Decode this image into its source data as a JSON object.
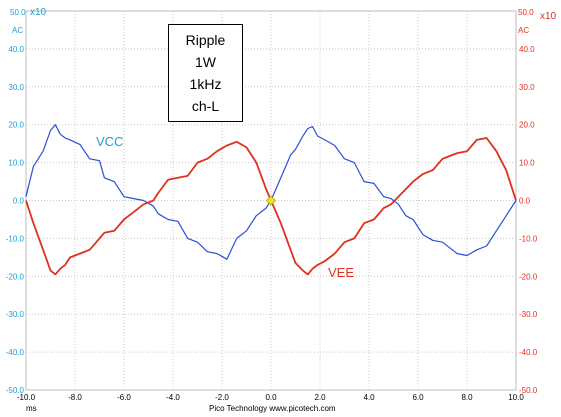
{
  "chart_data": {
    "type": "line",
    "annotation_lines": [
      "Ripple",
      "1W",
      "1kHz",
      "ch-L"
    ],
    "x_unit": "ms",
    "footer": "Pico Technology  www.picotech.com",
    "xlim": [
      -10.0,
      10.0
    ],
    "x_ticks": [
      -10.0,
      -8.0,
      -6.0,
      -4.0,
      -2.0,
      0.0,
      2.0,
      4.0,
      6.0,
      8.0,
      10.0
    ],
    "y_axes": {
      "left": {
        "top_labels": [
          "50.0",
          "x10",
          "AC"
        ],
        "color": "#1a9fd4",
        "ylim": [
          -50.0,
          50.0
        ]
      },
      "right": {
        "top_labels": [
          "50.0",
          "x10",
          "AC"
        ],
        "color": "#e0301e",
        "ylim": [
          -50.0,
          50.0
        ]
      }
    },
    "y_ticks": [
      50.0,
      40.0,
      30.0,
      20.0,
      10.0,
      0.0,
      -10.0,
      -20.0,
      -30.0,
      -40.0,
      -50.0
    ],
    "y_tick_labels": [
      "50.0",
      "40.0",
      "30.0",
      "20.0",
      "10.0",
      "0.0",
      "-10.0",
      "-20.0",
      "-30.0",
      "-40.0",
      "-50.0"
    ],
    "x_tick_labels": [
      "-10.0",
      "-8.0",
      "-6.0",
      "-4.0",
      "-2.0",
      "0.0",
      "2.0",
      "4.0",
      "6.0",
      "8.0",
      "10.0"
    ],
    "grid": true,
    "trigger_marker": {
      "x": 0.0,
      "y": 0.0,
      "color": "#f0e020"
    },
    "series": [
      {
        "name": "VCC",
        "color": "#2a4fd6",
        "label_color": "#1a9fd4",
        "x": [
          -10.0,
          -9.7,
          -9.3,
          -9.0,
          -8.8,
          -8.6,
          -8.4,
          -8.2,
          -7.8,
          -7.4,
          -7.0,
          -6.8,
          -6.4,
          -6.0,
          -5.6,
          -5.2,
          -4.8,
          -4.6,
          -4.2,
          -3.8,
          -3.4,
          -3.0,
          -2.6,
          -2.2,
          -1.8,
          -1.4,
          -1.0,
          -0.6,
          -0.2,
          0.0,
          0.4,
          0.8,
          1.0,
          1.3,
          1.5,
          1.7,
          1.9,
          2.2,
          2.6,
          3.0,
          3.4,
          3.8,
          4.2,
          4.6,
          4.9,
          5.2,
          5.5,
          5.8,
          6.2,
          6.6,
          7.0,
          7.4,
          7.6,
          8.0,
          8.4,
          8.8,
          9.2,
          9.6,
          10.0
        ],
        "y": [
          1.0,
          9.0,
          13.0,
          18.5,
          20.0,
          17.5,
          16.5,
          16.0,
          14.8,
          11.0,
          10.5,
          6.0,
          5.0,
          1.0,
          0.5,
          0.0,
          -1.5,
          -3.5,
          -5.0,
          -5.5,
          -10.0,
          -11.0,
          -13.5,
          -14.0,
          -15.5,
          -10.0,
          -8.0,
          -4.0,
          -2.0,
          0.0,
          6.0,
          12.0,
          13.5,
          17.0,
          19.0,
          19.5,
          17.0,
          16.0,
          14.5,
          11.0,
          10.0,
          5.0,
          4.5,
          1.0,
          0.5,
          -1.0,
          -4.0,
          -5.0,
          -9.0,
          -10.5,
          -11.0,
          -13.0,
          -14.0,
          -14.5,
          -13.0,
          -12.0,
          -8.0,
          -4.0,
          0.0
        ]
      },
      {
        "name": "VEE",
        "color": "#e0301e",
        "label_color": "#e0301e",
        "x": [
          -10.0,
          -9.7,
          -9.3,
          -9.0,
          -8.8,
          -8.6,
          -8.4,
          -8.2,
          -7.8,
          -7.4,
          -7.0,
          -6.8,
          -6.4,
          -6.0,
          -5.6,
          -5.2,
          -4.8,
          -4.6,
          -4.2,
          -3.8,
          -3.4,
          -3.0,
          -2.6,
          -2.2,
          -1.8,
          -1.4,
          -1.0,
          -0.6,
          -0.2,
          0.0,
          0.4,
          0.8,
          1.0,
          1.3,
          1.5,
          1.7,
          1.9,
          2.2,
          2.6,
          3.0,
          3.4,
          3.8,
          4.2,
          4.6,
          4.9,
          5.2,
          5.5,
          5.8,
          6.2,
          6.6,
          7.0,
          7.4,
          7.6,
          8.0,
          8.4,
          8.8,
          9.2,
          9.6,
          10.0
        ],
        "y": [
          0.0,
          -6.0,
          -13.0,
          -18.5,
          -19.5,
          -18.0,
          -17.0,
          -15.0,
          -14.0,
          -13.0,
          -10.0,
          -8.5,
          -8.0,
          -5.0,
          -3.0,
          -1.0,
          0.0,
          2.0,
          5.5,
          6.0,
          6.5,
          10.0,
          11.0,
          13.0,
          14.5,
          15.5,
          14.0,
          10.0,
          3.0,
          0.0,
          -6.0,
          -13.0,
          -16.5,
          -18.5,
          -19.5,
          -18.0,
          -17.0,
          -16.0,
          -14.0,
          -11.0,
          -10.0,
          -6.0,
          -5.0,
          -2.0,
          -1.0,
          1.0,
          3.0,
          5.0,
          7.0,
          8.0,
          11.0,
          12.0,
          12.5,
          13.0,
          16.0,
          16.5,
          13.0,
          8.0,
          0.0
        ]
      }
    ]
  }
}
